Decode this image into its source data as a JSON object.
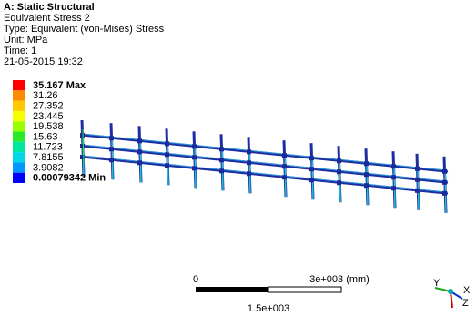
{
  "header": {
    "title": "A: Static Structural",
    "lines": [
      "Equivalent Stress 2",
      "Type: Equivalent (von-Mises) Stress",
      "Unit: MPa",
      "Time: 1",
      "21-05-2015 19:32"
    ]
  },
  "legend": {
    "entries": [
      {
        "label": "35.167 Max",
        "color": "#ff0000"
      },
      {
        "label": "31.26",
        "color": "#ff8a00"
      },
      {
        "label": "27.352",
        "color": "#ffc800"
      },
      {
        "label": "23.445",
        "color": "#f5ff00"
      },
      {
        "label": "19.538",
        "color": "#9cff00"
      },
      {
        "label": "15.63",
        "color": "#28ea28"
      },
      {
        "label": "11.723",
        "color": "#00e8a0"
      },
      {
        "label": "7.8155",
        "color": "#00d8e8"
      },
      {
        "label": "3.9082",
        "color": "#0098ff"
      },
      {
        "label": "0.00079342 Min",
        "color": "#0000ff"
      }
    ]
  },
  "scale_bar": {
    "start": "0",
    "end": "3e+003 (mm)",
    "middle": "1.5e+003"
  },
  "triad": {
    "y": "Y",
    "x": "X",
    "z": "Z"
  }
}
